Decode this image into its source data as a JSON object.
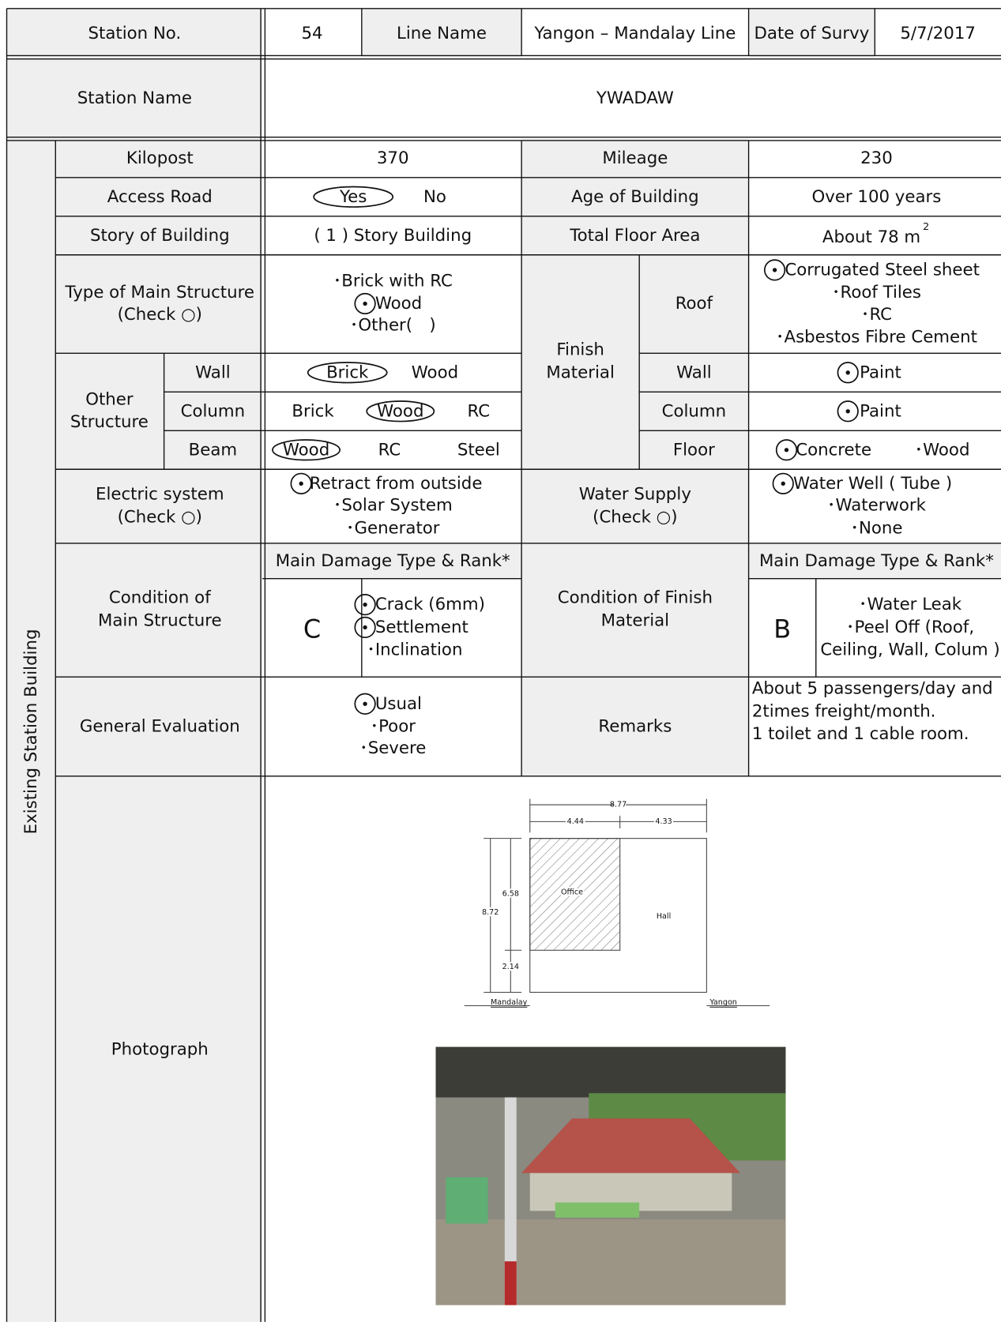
{
  "header": {
    "station_no_label": "Station No.",
    "station_no": "54",
    "line_name_label": "Line Name",
    "line_name": "Yangon – Mandalay Line",
    "survey_date_label": "Date of Survy",
    "survey_date": "5/7/2017"
  },
  "station_name": {
    "label": "Station Name",
    "value": "YWADAW"
  },
  "section_label": "Existing Station Building",
  "kilopost": {
    "label": "Kilopost",
    "value": "370"
  },
  "mileage": {
    "label": "Mileage",
    "value": "230"
  },
  "access_road": {
    "label": "Access Road",
    "options": [
      "Yes",
      "No"
    ]
  },
  "age_of_building": {
    "label": "Age of Building",
    "value": "Over 100 years"
  },
  "story_of_building": {
    "label": "Story of Building",
    "value": "( 1 ) Story Building"
  },
  "total_floor_area": {
    "label": "Total Floor Area",
    "value": "About 78 m",
    "superscript": "2"
  },
  "main_structure": {
    "label": [
      "Type of Main Structure",
      "(Check ○)"
    ],
    "options": [
      "･Brick with RC",
      "Wood",
      "･Other(　)"
    ]
  },
  "finish_material": {
    "label": [
      "Finish",
      "Material"
    ],
    "roof": {
      "label": "Roof",
      "options": [
        "Corrugated Steel sheet",
        "･Roof Tiles",
        "･RC",
        "･Asbestos Fibre Cement"
      ]
    },
    "wall": {
      "label": "Wall",
      "value": "Paint"
    },
    "column": {
      "label": "Column",
      "value": "Paint"
    },
    "floor": {
      "label": "Floor",
      "options": [
        "Concrete",
        "･Wood"
      ]
    }
  },
  "other_structure": {
    "label": [
      "Other",
      "Structure"
    ],
    "wall": {
      "label": "Wall",
      "options": [
        "Brick",
        "Wood"
      ]
    },
    "column": {
      "label": "Column",
      "options": [
        "Brick",
        "Wood",
        "RC"
      ]
    },
    "beam": {
      "label": "Beam",
      "options": [
        "Wood",
        "RC",
        "Steel"
      ]
    }
  },
  "electric_system": {
    "label": [
      "Electric system",
      "(Check ○)"
    ],
    "options": [
      "Retract from outside",
      "･Solar  System",
      "･Generator"
    ]
  },
  "water_supply": {
    "label": [
      "Water Supply",
      "(Check ○)"
    ],
    "options": [
      "Water Well (  Tube  )",
      "･Waterwork",
      "･None"
    ]
  },
  "condition_main": {
    "label": [
      "Condition of",
      "Main Structure"
    ],
    "header": "Main Damage Type & Rank*",
    "rank": "C",
    "options": [
      "Crack (6mm)",
      "Settlement",
      "･Inclination"
    ]
  },
  "condition_finish": {
    "label": [
      "Condition of Finish",
      "Material"
    ],
    "header": "Main Damage Type & Rank*",
    "rank": "B",
    "options": [
      "･Water  Leak",
      "･Peel Off (Roof,",
      "Ceiling, Wall, Colum )"
    ]
  },
  "general_evaluation": {
    "label": "General Evaluation",
    "options": [
      "Usual",
      "･Poor",
      "･Severe"
    ]
  },
  "remarks": {
    "label": "Remarks",
    "lines": [
      "About 5 passengers/day and",
      "2times freight/month.",
      "1 toilet and 1 cable room."
    ]
  },
  "photograph": {
    "label": "Photograph",
    "floor_plan": {
      "dims": [
        "8.77",
        "4.44",
        "4.33",
        "6.58",
        "8.72",
        "2.14"
      ],
      "rooms": [
        "Office",
        "Hall"
      ],
      "directions": [
        "Mandalay",
        "Yangon"
      ]
    }
  }
}
